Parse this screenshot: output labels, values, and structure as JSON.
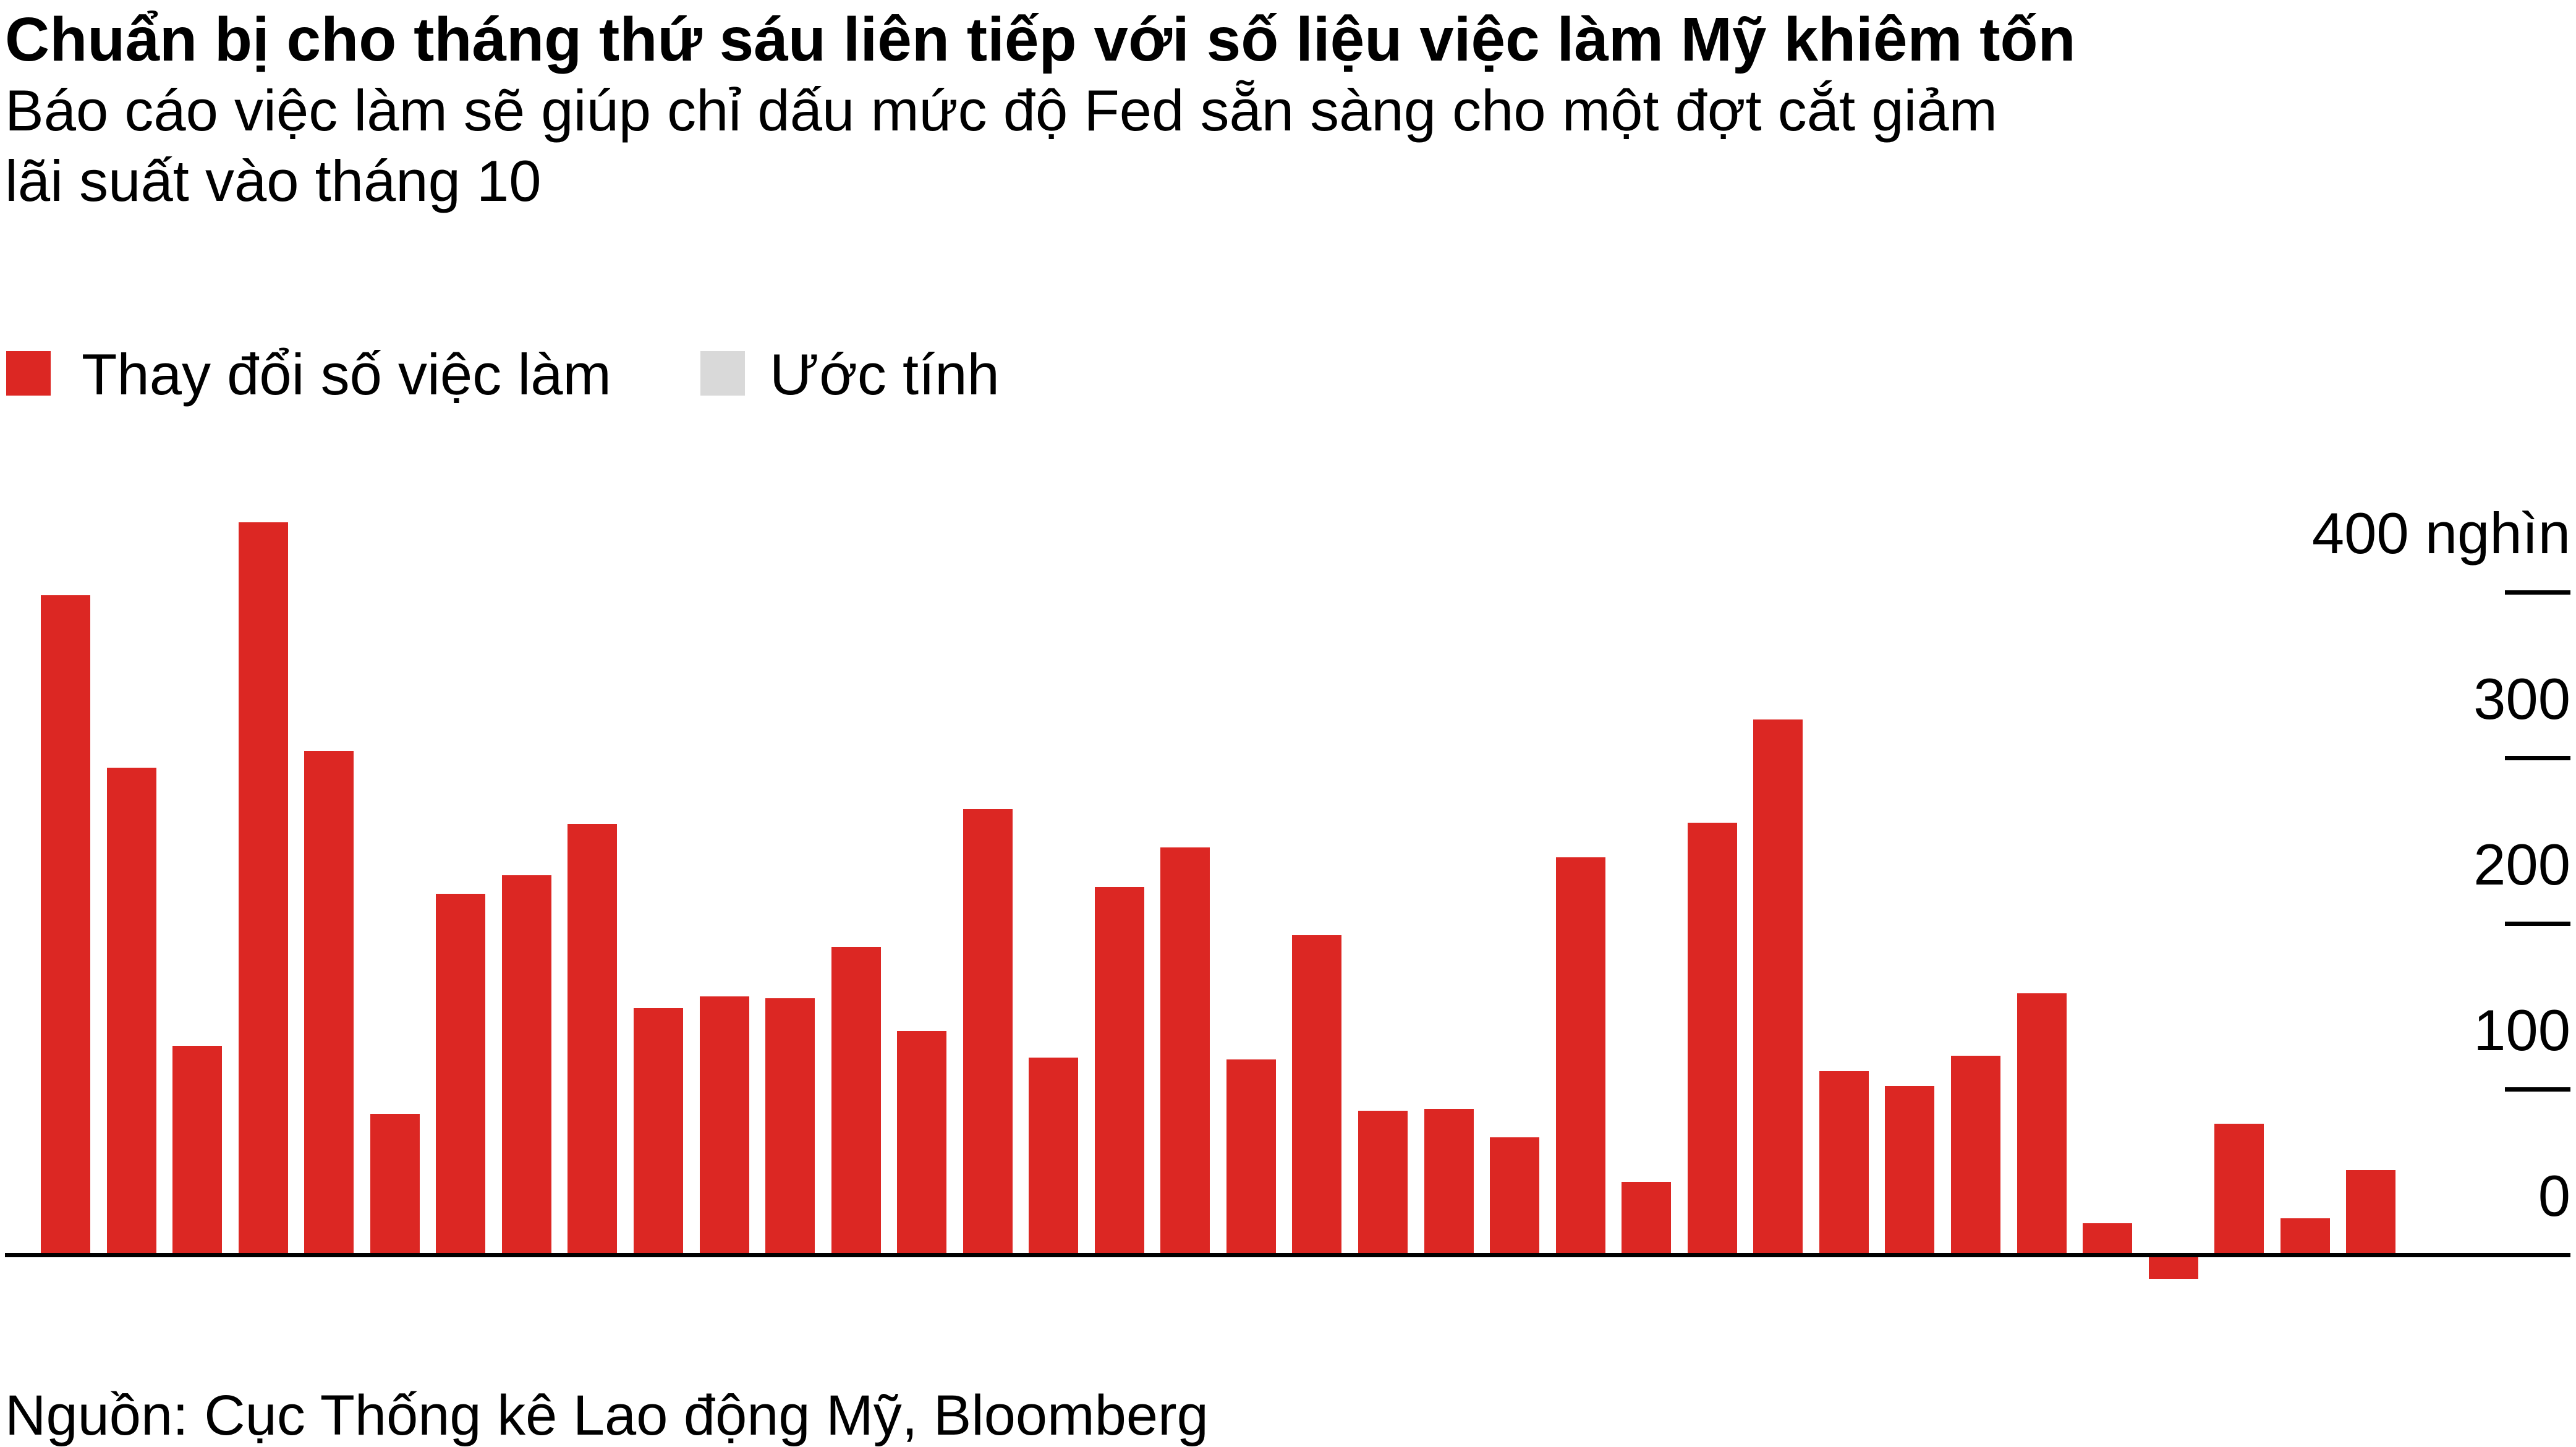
{
  "header": {
    "title": "Chuẩn bị cho tháng thứ sáu liên tiếp với số liệu việc làm Mỹ khiêm tốn",
    "subtitle_lines": [
      "Báo cáo việc làm sẽ giúp chỉ dấu mức độ Fed sẵn sàng cho một đợt cắt giảm",
      "lãi suất vào tháng 10"
    ]
  },
  "legend": {
    "actual_label": "Thay đổi số việc làm",
    "estimate_label": "Ước tính"
  },
  "colors": {
    "bar_red": "#DC2723",
    "estimate_gray": "#D9D9D9",
    "axis_black": "#000000",
    "background": "#FFFFFF"
  },
  "source": "Nguồn: Cục Thống kê Lao động Mỹ, Bloomberg",
  "chart_data": {
    "type": "bar",
    "title": "Chuẩn bị cho tháng thứ sáu liên tiếp với số liệu việc làm Mỹ khiêm tốn",
    "subtitle": "Báo cáo việc làm sẽ giúp chỉ dấu mức độ Fed sẵn sàng cho một đợt cắt giảm lãi suất vào tháng 10",
    "series_name": "Thay đổi số việc làm",
    "unit": "nghìn",
    "x_axis": "36 monthly bars, unlabeled in the image (ends with the estimated month)",
    "values": [
      398,
      294,
      126,
      442,
      304,
      85,
      218,
      229,
      260,
      149,
      156,
      155,
      186,
      135,
      269,
      119,
      222,
      246,
      118,
      193,
      87,
      88,
      71,
      240,
      44,
      261,
      323,
      111,
      102,
      120,
      158,
      19,
      -13,
      79,
      22,
      51
    ],
    "last_bar_is_estimate": true,
    "y_axis": {
      "ticks": [
        {
          "value": 400,
          "label": "400 nghìn"
        },
        {
          "value": 300,
          "label": "300"
        },
        {
          "value": 200,
          "label": "200"
        },
        {
          "value": 100,
          "label": "100"
        },
        {
          "value": 0,
          "label": "0"
        }
      ],
      "range": [
        -50,
        460
      ],
      "gridlines": "short right-side tick dashes plus full-width zero baseline",
      "legend_position": "top-left above plot"
    }
  }
}
